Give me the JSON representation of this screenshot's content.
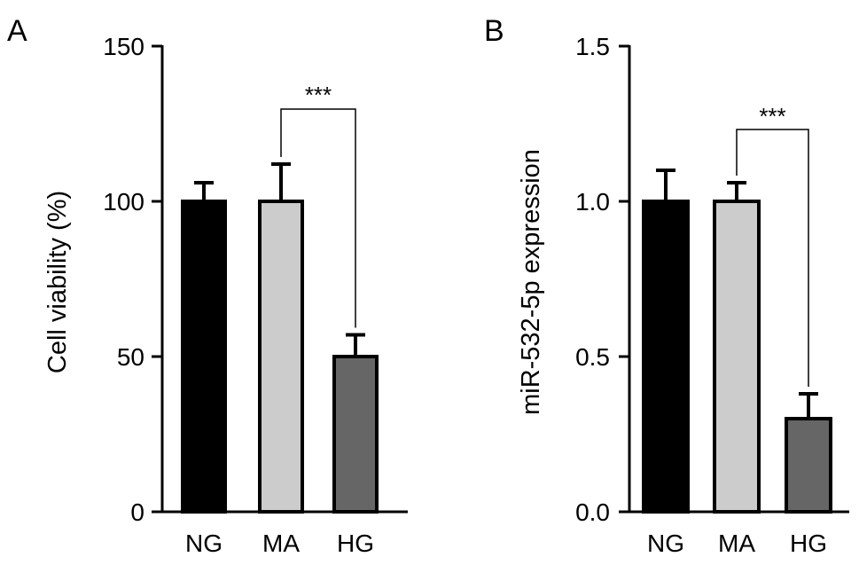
{
  "chart_data": [
    {
      "panel_label": "A",
      "type": "bar",
      "categories": [
        "NG",
        "MA",
        "HG"
      ],
      "values": [
        100,
        100,
        50
      ],
      "errors": [
        6,
        12,
        7
      ],
      "bar_colors": [
        "#000000",
        "#cccccc",
        "#666666"
      ],
      "xlabel": "",
      "ylabel": "Cell viability (%)",
      "ylim": [
        0,
        150
      ],
      "yticks": [
        "0",
        "50",
        "100",
        "150"
      ],
      "significance": {
        "between": [
          "MA",
          "HG"
        ],
        "label": "***"
      },
      "grid": false,
      "legend": "none"
    },
    {
      "panel_label": "B",
      "type": "bar",
      "categories": [
        "NG",
        "MA",
        "HG"
      ],
      "values": [
        1.0,
        1.0,
        0.3
      ],
      "errors": [
        0.1,
        0.06,
        0.08
      ],
      "bar_colors": [
        "#000000",
        "#cccccc",
        "#666666"
      ],
      "xlabel": "",
      "ylabel": "miR-532-5p expression",
      "ylim": [
        0,
        1.5
      ],
      "yticks": [
        "0.0",
        "0.5",
        "1.0",
        "1.5"
      ],
      "significance": {
        "between": [
          "MA",
          "HG"
        ],
        "label": "***"
      },
      "grid": false,
      "legend": "none"
    }
  ]
}
